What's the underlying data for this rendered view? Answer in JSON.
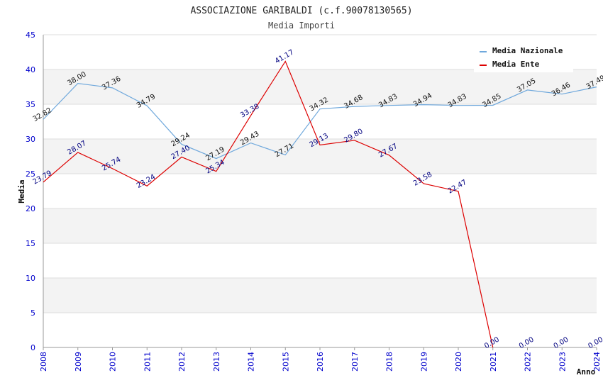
{
  "chart_data": {
    "type": "line",
    "title": "ASSOCIAZIONE GARIBALDI (c.f.90078130565)",
    "subtitle": "Media Importi",
    "xlabel": "Anno",
    "ylabel": "Media",
    "ylim": [
      0,
      45
    ],
    "yticks": [
      "0",
      "5",
      "10",
      "15",
      "20",
      "25",
      "30",
      "35",
      "40",
      "45"
    ],
    "grid": true,
    "legend_position": "top-right",
    "categories": [
      "2008",
      "2009",
      "2010",
      "2011",
      "2012",
      "2013",
      "2014",
      "2015",
      "2016",
      "2017",
      "2018",
      "2019",
      "2020",
      "2021",
      "2022",
      "2023",
      "2024"
    ],
    "series": [
      {
        "name": "Media Nazionale",
        "color": "#6fa8dc",
        "values": [
          32.82,
          38.0,
          37.36,
          34.79,
          29.24,
          27.19,
          29.43,
          27.71,
          34.32,
          34.68,
          34.83,
          34.94,
          34.83,
          34.85,
          37.05,
          36.46,
          37.49
        ],
        "labels": [
          "32.82",
          "38.00",
          "37.36",
          "34.79",
          "29.24",
          "27.19",
          "29.43",
          "27.71",
          "34.32",
          "34.68",
          "34.83",
          "34.94",
          "34.83",
          "34.85",
          "37.05",
          "36.46",
          "37.49"
        ]
      },
      {
        "name": "Media Ente",
        "color": "#dd0000",
        "values": [
          23.79,
          28.07,
          25.74,
          23.24,
          27.4,
          25.34,
          33.38,
          41.17,
          29.13,
          29.8,
          27.67,
          23.58,
          22.47,
          0.0,
          null,
          null,
          null
        ],
        "labels": [
          "23.79",
          "28.07",
          "25.74",
          "23.24",
          "27.40",
          "25.34",
          "33.38",
          "41.17",
          "29.13",
          "29.80",
          "27.67",
          "23.58",
          "22.47",
          "0.00",
          "0.00",
          "0.00",
          "0.00"
        ]
      }
    ]
  }
}
